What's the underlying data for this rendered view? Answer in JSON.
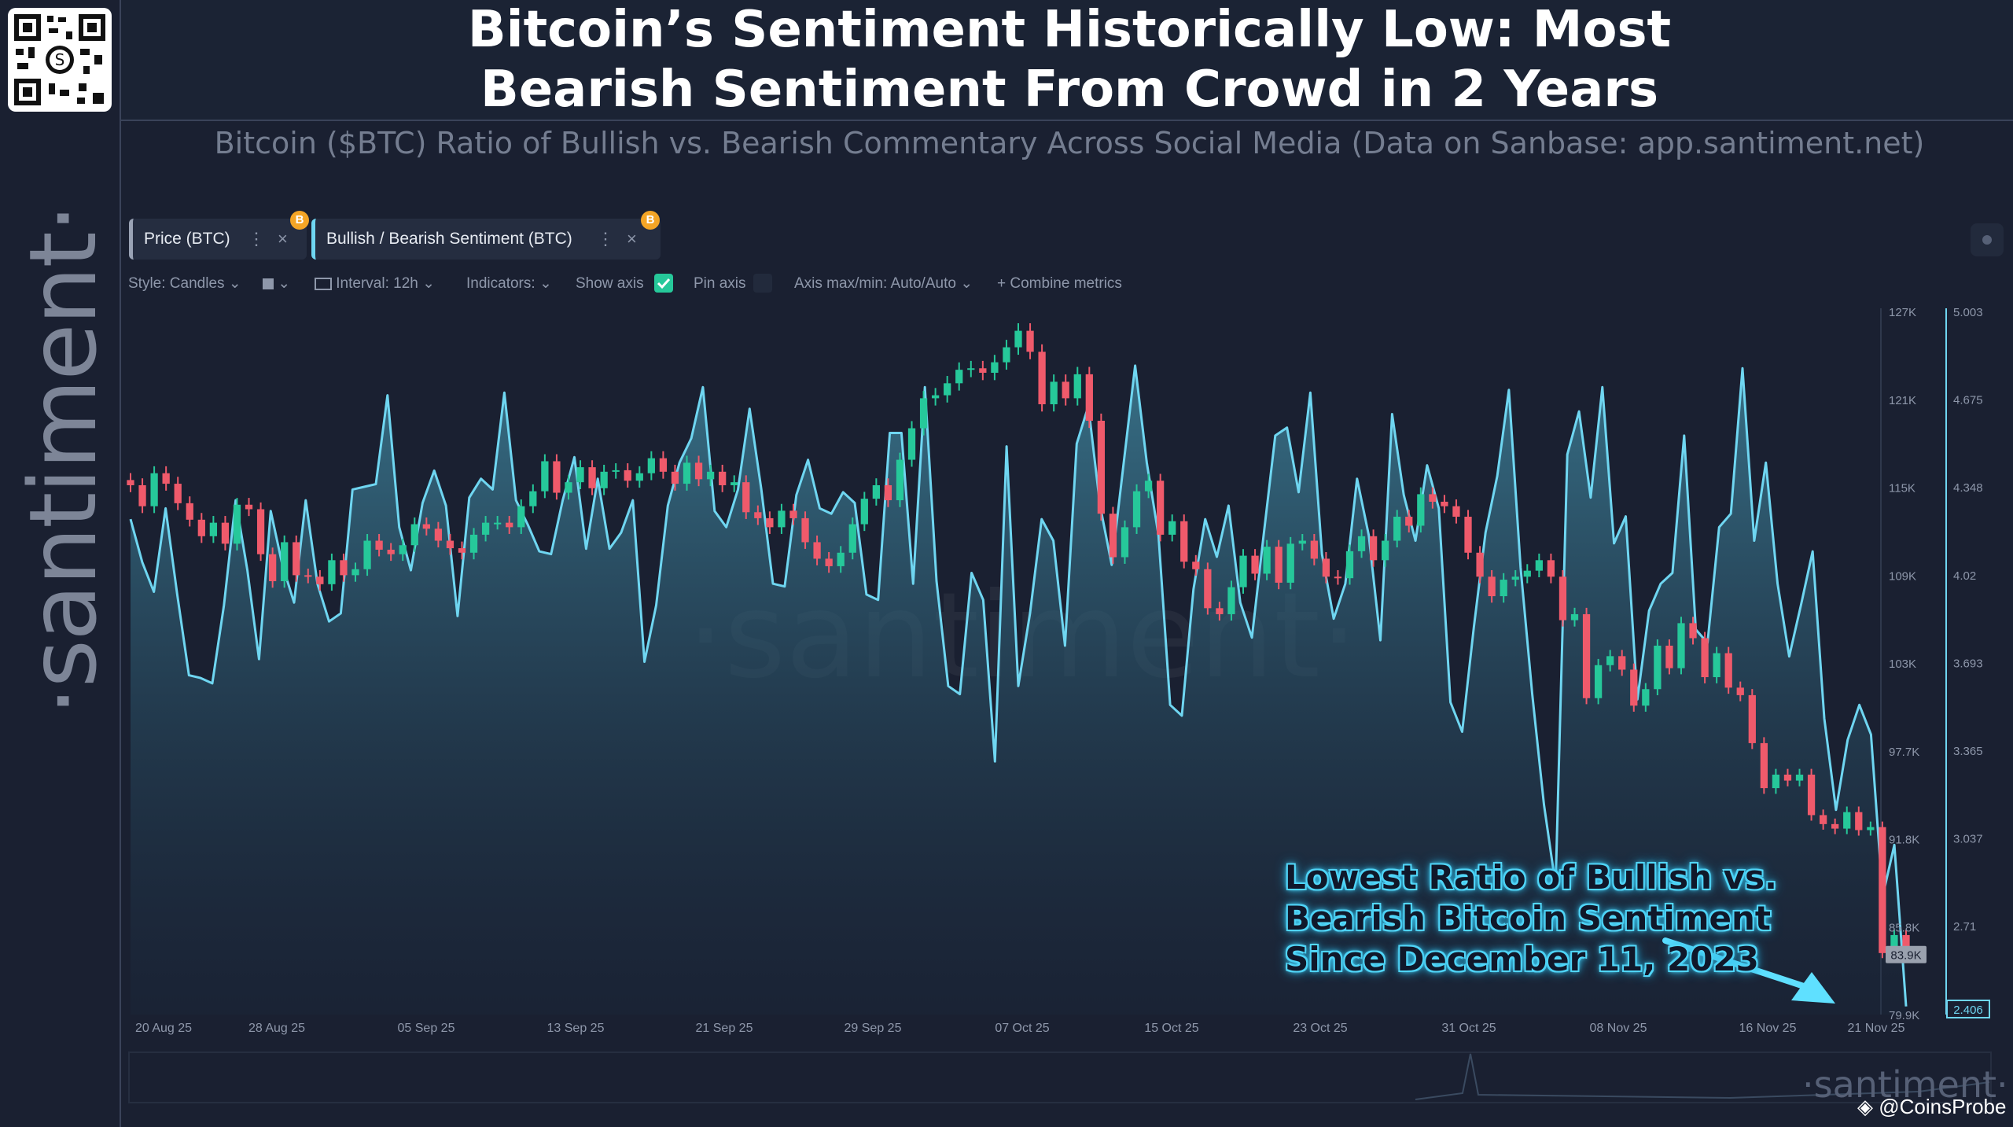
{
  "header": {
    "title_line1": "Bitcoin’s Sentiment Historically Low: Most",
    "title_line2": "Bearish Sentiment From Crowd in 2 Years",
    "subtitle": "Bitcoin ($BTC) Ratio of Bullish vs. Bearish Commentary Across Social Media (Data on Sanbase: app.santiment.net)"
  },
  "brand": {
    "vertical_logo": "·santiment·",
    "watermark": "·santiment·",
    "bottom_logo": "·santiment·",
    "credit": "@CoinsProbe",
    "coin_badge": "B"
  },
  "tabs": [
    {
      "label": "Price (BTC)",
      "menu": "⋮",
      "close": "×"
    },
    {
      "label": "Bullish / Bearish Sentiment (BTC)",
      "menu": "⋮",
      "close": "×"
    }
  ],
  "toolbar": {
    "style": "Style: Candles",
    "interval": "Interval: 12h",
    "indicators": "Indicators:",
    "show_axis": "Show axis",
    "pin_axis": "Pin axis",
    "axis_maxmin": "Axis max/min: Auto/Auto",
    "combine": "Combine metrics"
  },
  "annotation": {
    "line1": "Lowest Ratio of Bullish vs.",
    "line2": "Bearish Bitcoin Sentiment",
    "line3": "Since December 11, 2023"
  },
  "colors": {
    "background": "#1a2031",
    "up": "#26c89a",
    "down": "#ef5a6b",
    "sentiment_line": "#6fd6f1",
    "sentiment_fill": "#2c6a80"
  },
  "chart_data": {
    "type": "line",
    "x_tick_labels": [
      "20 Aug 25",
      "28 Aug 25",
      "05 Sep 25",
      "13 Sep 25",
      "21 Sep 25",
      "29 Sep 25",
      "07 Oct 25",
      "15 Oct 25",
      "23 Oct 25",
      "31 Oct 25",
      "08 Nov 25",
      "16 Nov 25",
      "21 Nov 25"
    ],
    "price_axis": {
      "ticks": [
        "127K",
        "121K",
        "115K",
        "109K",
        "103K",
        "97.7K",
        "91.8K",
        "85.8K",
        "79.9K"
      ],
      "ylim": [
        79900,
        127000
      ],
      "current_label": "83.9K"
    },
    "sentiment_axis": {
      "ticks": [
        "5.003",
        "4.675",
        "4.348",
        "4.02",
        "3.693",
        "3.365",
        "3.037",
        "2.71"
      ],
      "ylim": [
        2.38,
        5.003
      ],
      "current_label": "2.406"
    },
    "series": [
      {
        "name": "Price (BTC)",
        "style": "candles",
        "close": [
          115200,
          113800,
          116000,
          115300,
          114000,
          112900,
          111800,
          112700,
          111300,
          113900,
          113600,
          110600,
          108800,
          111400,
          109200,
          109100,
          108600,
          110200,
          109200,
          109600,
          111500,
          110900,
          110600,
          111200,
          112600,
          112300,
          111500,
          111000,
          110700,
          111900,
          112700,
          112700,
          112400,
          113800,
          114800,
          116800,
          114700,
          115400,
          116400,
          115000,
          116100,
          116200,
          115500,
          116000,
          117000,
          116100,
          115300,
          116700,
          115600,
          116100,
          115200,
          115400,
          113400,
          113000,
          112400,
          113500,
          113000,
          111400,
          110300,
          109800,
          110700,
          112600,
          114300,
          115200,
          114200,
          116900,
          119000,
          121000,
          121200,
          122000,
          122900,
          123000,
          122700,
          123400,
          124400,
          125500,
          124100,
          120600,
          122100,
          121000,
          122600,
          119500,
          113300,
          110400,
          112400,
          114800,
          115500,
          111900,
          112800,
          110100,
          109600,
          107000,
          106600,
          108400,
          110500,
          109300,
          111100,
          108700,
          111300,
          111500,
          110300,
          109100,
          109000,
          110800,
          111800,
          110200,
          111500,
          113100,
          112500,
          114600,
          114100,
          113800,
          113100,
          110700,
          109100,
          107800,
          108900,
          109100,
          109500,
          110200,
          109100,
          106200,
          106600,
          101000,
          103200,
          103800,
          102900,
          100500,
          101600,
          104500,
          103000,
          106000,
          105000,
          102400,
          104000,
          101700,
          101200,
          98000,
          95000,
          95900,
          95500,
          95900,
          93200,
          92600,
          92300,
          93400,
          92200,
          92400,
          84000,
          85200,
          83900
        ]
      },
      {
        "name": "Bullish / Bearish Sentiment (BTC)",
        "style": "area",
        "values": [
          4.22,
          4.06,
          3.95,
          4.26,
          3.94,
          3.64,
          3.63,
          3.61,
          3.9,
          4.29,
          4.03,
          3.7,
          4.25,
          4.05,
          3.91,
          4.29,
          3.98,
          3.84,
          3.87,
          4.33,
          4.34,
          4.35,
          4.68,
          4.19,
          4.03,
          4.28,
          4.4,
          4.27,
          3.86,
          4.3,
          4.37,
          4.33,
          4.69,
          4.29,
          4.2,
          4.1,
          4.09,
          4.29,
          4.45,
          4.11,
          4.37,
          4.11,
          4.17,
          4.29,
          3.69,
          3.9,
          4.27,
          4.43,
          4.52,
          4.71,
          4.25,
          4.19,
          4.33,
          4.63,
          4.33,
          3.98,
          3.97,
          4.31,
          4.44,
          4.26,
          4.24,
          4.32,
          4.28,
          3.94,
          3.92,
          4.54,
          4.54,
          3.98,
          4.71,
          3.99,
          3.6,
          3.57,
          4.02,
          3.92,
          3.32,
          4.49,
          3.6,
          3.87,
          4.22,
          4.14,
          3.75,
          4.5,
          4.64,
          4.27,
          4.05,
          4.42,
          4.79,
          4.43,
          4.16,
          3.53,
          3.49,
          3.96,
          4.22,
          4.08,
          4.27,
          3.91,
          3.78,
          4.16,
          4.53,
          4.56,
          4.32,
          4.69,
          4.09,
          3.85,
          3.98,
          4.37,
          4.16,
          3.77,
          4.61,
          4.31,
          4.14,
          4.42,
          4.26,
          3.54,
          3.43,
          3.82,
          4.17,
          4.38,
          4.7,
          4.04,
          3.57,
          3.16,
          2.86,
          4.46,
          4.62,
          4.3,
          4.71,
          4.13,
          4.23,
          3.55,
          3.88,
          3.98,
          4.02,
          4.53,
          3.81,
          3.76,
          4.19,
          4.24,
          4.78,
          4.14,
          4.43,
          3.98,
          3.71,
          3.9,
          4.1,
          3.48,
          3.14,
          3.4,
          3.53,
          3.42,
          2.82,
          3.01,
          2.41
        ]
      }
    ]
  }
}
